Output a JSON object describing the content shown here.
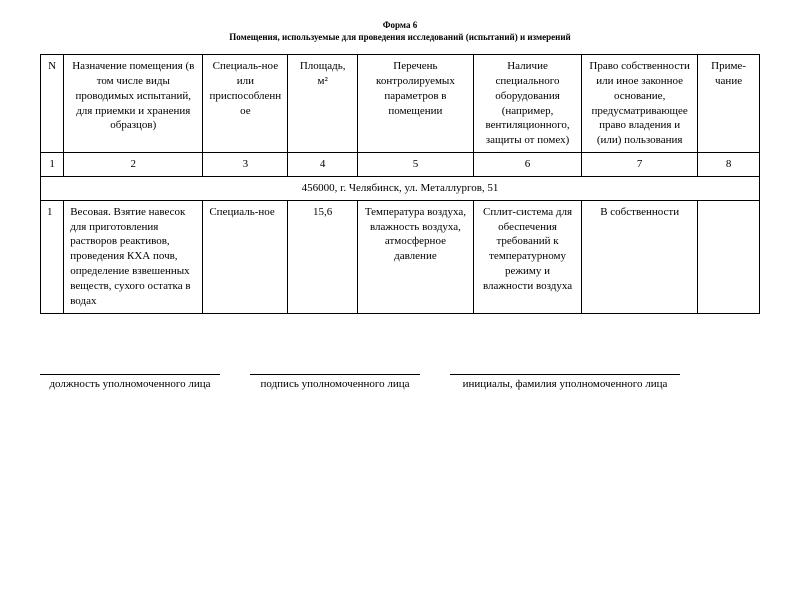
{
  "form_label": "Форма 6",
  "title": "Помещения, используемые для проведения исследований (испытаний) и измерений",
  "headers": {
    "col0": "N",
    "col1": "Назначение помещения (в том числе виды проводимых испытаний, для приемки и хранения образцов)",
    "col2": "Специаль-ное или приспособленное",
    "col3": "Площадь, м²",
    "col4": "Перечень контролируемых параметров в помещении",
    "col5": "Наличие специального оборудования (например, вентиляционного, защиты от помех)",
    "col6": "Право собственности или иное законное основание, предусматривающее право владения и (или) пользования",
    "col7": "Приме-чание",
    "num0": "1",
    "num1": "2",
    "num2": "3",
    "num3": "4",
    "num4": "5",
    "num5": "6",
    "num6": "7",
    "num7": "8"
  },
  "address": "456000, г. Челябинск, ул. Металлургов, 51",
  "row1": {
    "n": "1",
    "purpose": "Весовая. Взятие навесок для приготовления растворов реактивов, проведения КХА почв, определение взвешенных веществ, сухого остатка в водах",
    "type": "Специаль-ное",
    "area": "15,6",
    "params": "Температура воздуха, влажность воздуха, атмосферное давление",
    "equipment": "Сплит-система для обеспечения требований к температурному режиму и влажности воздуха",
    "right": "В собственности",
    "note": ""
  },
  "signatures": {
    "s1_label": "должность уполномоченного лица",
    "s2_label": "подпись уполномоченного лица",
    "s3_label": "инициалы, фамилия  уполномоченного лица"
  },
  "widths": {
    "s1": 180,
    "s2": 170,
    "s3": 230
  }
}
